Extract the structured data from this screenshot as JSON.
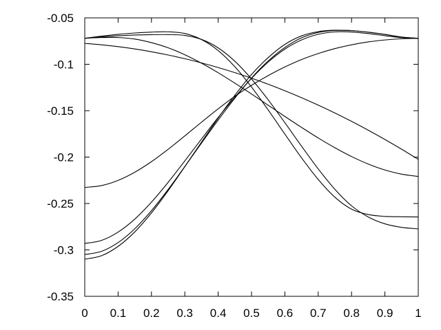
{
  "chart_data": {
    "type": "line",
    "title": "",
    "xlabel": "",
    "ylabel": "",
    "xlim": [
      0,
      1
    ],
    "ylim": [
      -0.35,
      -0.05
    ],
    "x_ticks": [
      0,
      0.1,
      0.2,
      0.3,
      0.4,
      0.5,
      0.6,
      0.7,
      0.8,
      0.9,
      1
    ],
    "x_tick_labels": [
      "0",
      "0.1",
      "0.2",
      "0.3",
      "0.4",
      "0.5",
      "0.6",
      "0.7",
      "0.8",
      "0.9",
      "1"
    ],
    "y_ticks": [
      -0.35,
      -0.3,
      -0.25,
      -0.2,
      -0.15,
      -0.1,
      -0.05
    ],
    "y_tick_labels": [
      "-0.35",
      "-0.3",
      "-0.25",
      "-0.2",
      "-0.15",
      "-0.1",
      "-0.05"
    ],
    "grid": false,
    "legend": "none",
    "line_color": "#000000",
    "x": [
      0,
      0.05,
      0.1,
      0.15,
      0.2,
      0.25,
      0.3,
      0.35,
      0.4,
      0.45,
      0.5,
      0.55,
      0.6,
      0.65,
      0.7,
      0.75,
      0.8,
      0.85,
      0.9,
      0.95,
      1
    ],
    "series": [
      {
        "values": [
          -0.072,
          -0.0697,
          -0.0677,
          -0.0663,
          -0.0653,
          -0.065,
          -0.0668,
          -0.0733,
          -0.0852,
          -0.1026,
          -0.1245,
          -0.1492,
          -0.1752,
          -0.2008,
          -0.2241,
          -0.2432,
          -0.2561,
          -0.2619,
          -0.2639,
          -0.2643,
          -0.2645
        ]
      },
      {
        "values": [
          -0.072,
          -0.0712,
          -0.0712,
          -0.0728,
          -0.0767,
          -0.0822,
          -0.0897,
          -0.0988,
          -0.1091,
          -0.1203,
          -0.132,
          -0.1441,
          -0.1562,
          -0.168,
          -0.1794,
          -0.1899,
          -0.1994,
          -0.2075,
          -0.2139,
          -0.2184,
          -0.2208
        ]
      },
      {
        "values": [
          -0.072,
          -0.0705,
          -0.0693,
          -0.0685,
          -0.0681,
          -0.068,
          -0.0689,
          -0.0732,
          -0.0823,
          -0.0967,
          -0.1158,
          -0.1383,
          -0.1629,
          -0.1882,
          -0.2127,
          -0.2347,
          -0.2525,
          -0.2645,
          -0.2719,
          -0.2757,
          -0.2774
        ]
      },
      {
        "values": [
          -0.0775,
          -0.079,
          -0.081,
          -0.0835,
          -0.0865,
          -0.09,
          -0.094,
          -0.0985,
          -0.1035,
          -0.109,
          -0.115,
          -0.1215,
          -0.1285,
          -0.136,
          -0.144,
          -0.1525,
          -0.1615,
          -0.171,
          -0.181,
          -0.1915,
          -0.2025
        ]
      },
      {
        "values": [
          -0.2327,
          -0.2307,
          -0.2251,
          -0.2163,
          -0.2049,
          -0.1916,
          -0.1772,
          -0.1624,
          -0.148,
          -0.1345,
          -0.1227,
          -0.1122,
          -0.1029,
          -0.0949,
          -0.0884,
          -0.0831,
          -0.079,
          -0.0759,
          -0.0738,
          -0.0725,
          -0.072
        ]
      },
      {
        "values": [
          -0.293,
          -0.2898,
          -0.2808,
          -0.2668,
          -0.2485,
          -0.2272,
          -0.2041,
          -0.1805,
          -0.1573,
          -0.1355,
          -0.1152,
          -0.0976,
          -0.0836,
          -0.0738,
          -0.0677,
          -0.0651,
          -0.0652,
          -0.0669,
          -0.0692,
          -0.0713,
          -0.072
        ]
      },
      {
        "values": [
          -0.305,
          -0.3016,
          -0.2921,
          -0.2772,
          -0.2577,
          -0.2349,
          -0.2102,
          -0.1849,
          -0.1601,
          -0.1365,
          -0.1148,
          -0.0964,
          -0.0819,
          -0.0715,
          -0.0657,
          -0.0636,
          -0.0638,
          -0.0654,
          -0.0678,
          -0.0707,
          -0.072
        ]
      },
      {
        "values": [
          -0.31,
          -0.3063,
          -0.2962,
          -0.2806,
          -0.2601,
          -0.2362,
          -0.2103,
          -0.1839,
          -0.1579,
          -0.1334,
          -0.111,
          -0.0928,
          -0.0786,
          -0.0694,
          -0.0648,
          -0.0633,
          -0.0637,
          -0.0654,
          -0.0678,
          -0.0707,
          -0.072
        ]
      }
    ]
  }
}
